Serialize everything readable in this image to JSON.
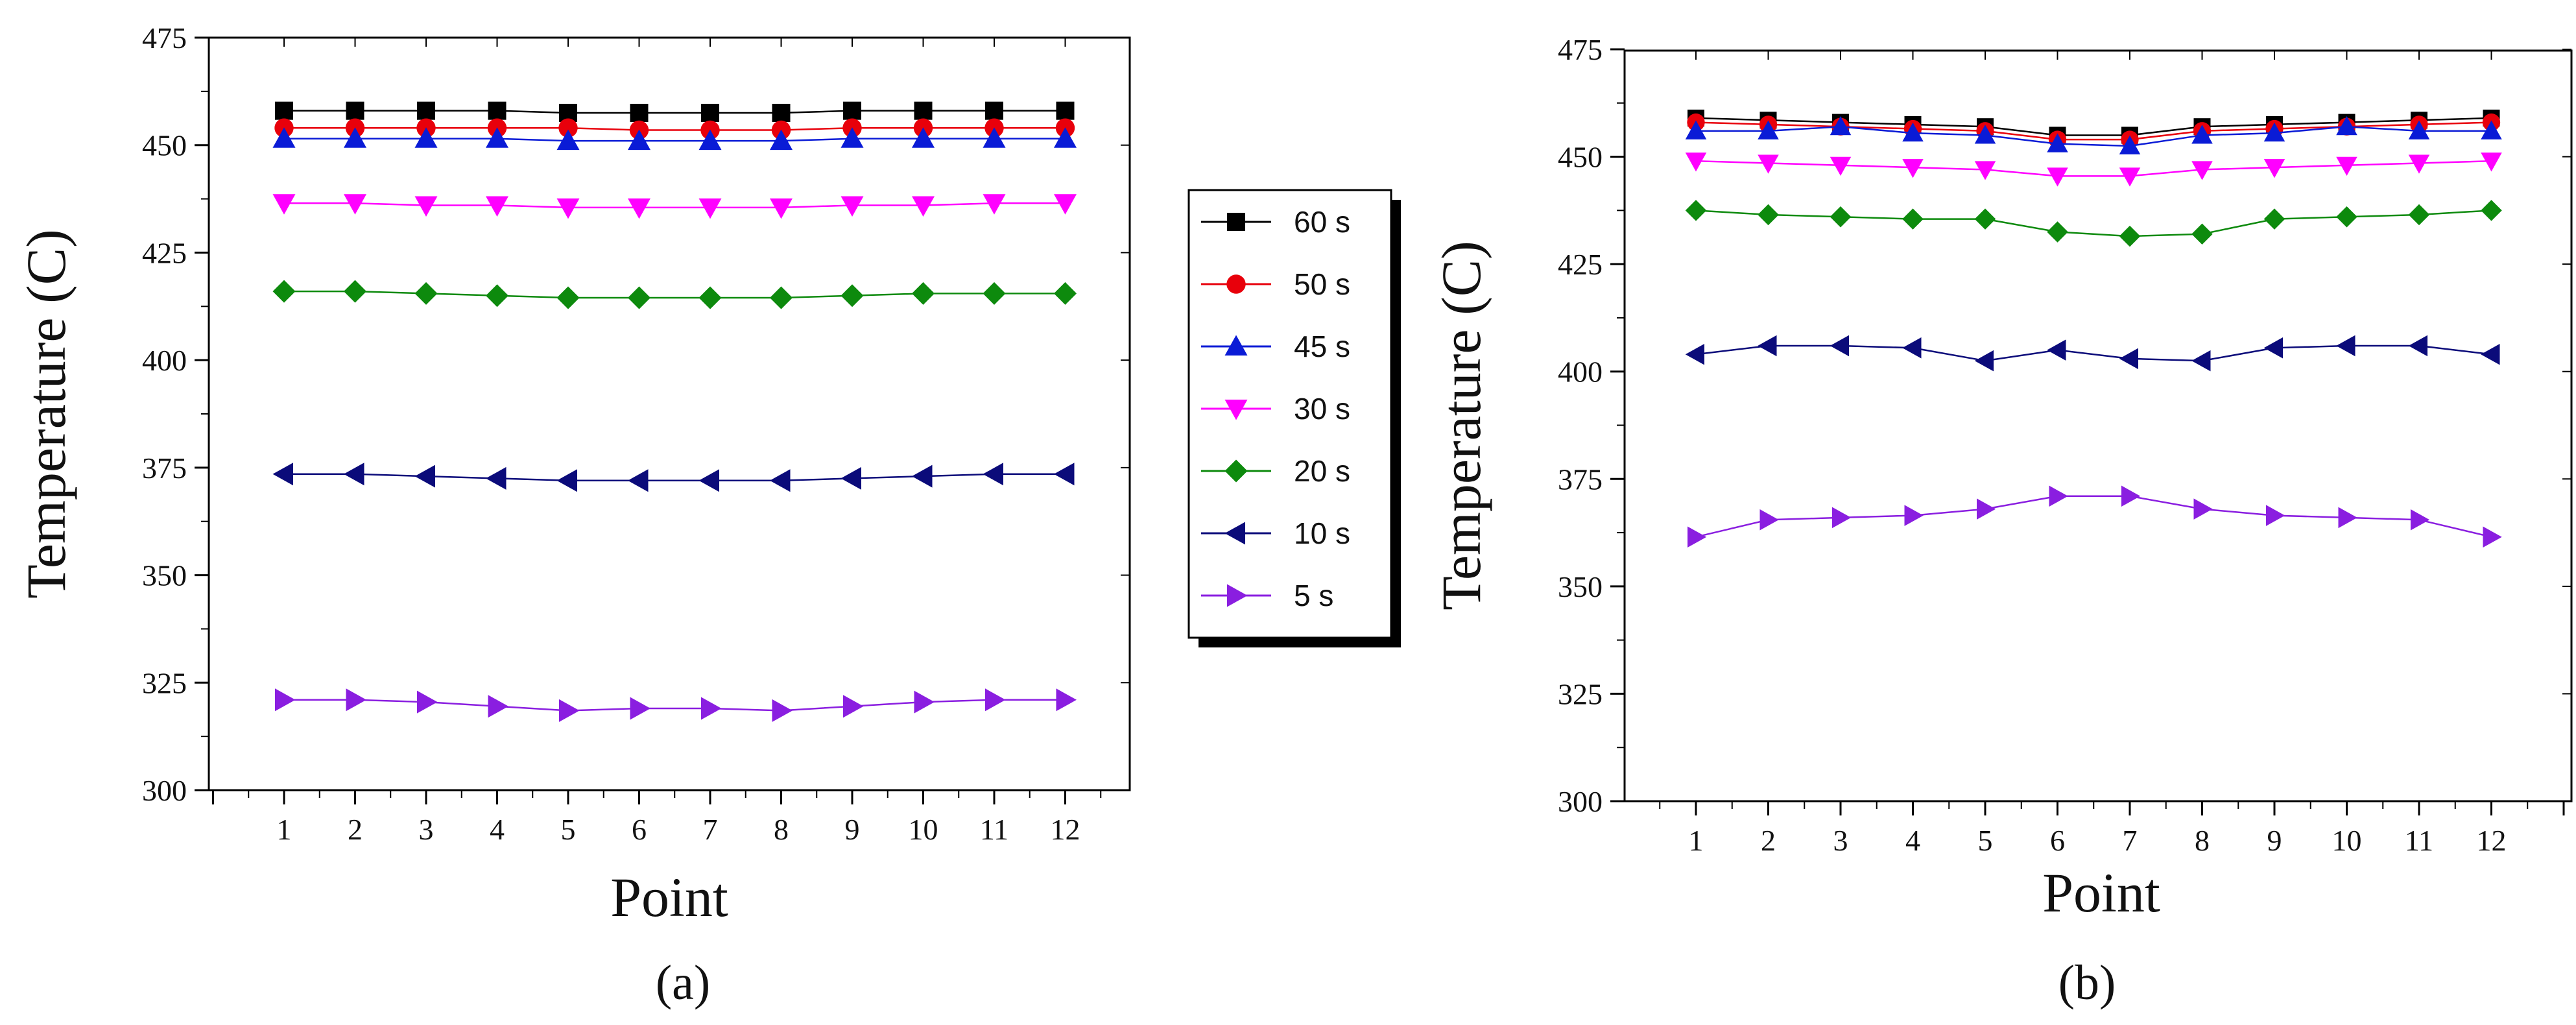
{
  "chart_data": [
    {
      "type": "line",
      "panel_label": "(a)",
      "xlabel": "Point",
      "ylabel": "Temperature (C)",
      "ylim": [
        300,
        475
      ],
      "yticks": [
        300,
        325,
        350,
        375,
        400,
        425,
        450,
        475
      ],
      "x": [
        1,
        2,
        3,
        4,
        5,
        6,
        7,
        8,
        9,
        10,
        11,
        12
      ],
      "grid": false,
      "series": [
        {
          "name": "60 s",
          "color": "#000000",
          "marker": "square",
          "values": [
            458,
            458,
            458,
            458,
            457.5,
            457.5,
            457.5,
            457.5,
            458,
            458,
            458,
            458
          ]
        },
        {
          "name": "50 s",
          "color": "#e8000b",
          "marker": "circle",
          "values": [
            454,
            454,
            454,
            454,
            454,
            453.5,
            453.5,
            453.5,
            454,
            454,
            454,
            454
          ]
        },
        {
          "name": "45 s",
          "color": "#0a1bd6",
          "marker": "triangle-up",
          "values": [
            451.5,
            451.5,
            451.5,
            451.5,
            451,
            451,
            451,
            451,
            451.5,
            451.5,
            451.5,
            451.5
          ]
        },
        {
          "name": "30 s",
          "color": "#ff00ff",
          "marker": "triangle-down",
          "values": [
            436.5,
            436.5,
            436,
            436,
            435.5,
            435.5,
            435.5,
            435.5,
            436,
            436,
            436.5,
            436.5
          ]
        },
        {
          "name": "20 s",
          "color": "#0d8a0d",
          "marker": "diamond",
          "values": [
            416,
            416,
            415.5,
            415,
            414.5,
            414.5,
            414.5,
            414.5,
            415,
            415.5,
            415.5,
            415.5
          ]
        },
        {
          "name": "10 s",
          "color": "#0b0b7a",
          "marker": "triangle-left",
          "values": [
            373.5,
            373.5,
            373,
            372.5,
            372,
            372,
            372,
            372,
            372.5,
            373,
            373.5,
            373.5
          ]
        },
        {
          "name": "5 s",
          "color": "#8a1ee0",
          "marker": "triangle-right",
          "values": [
            321,
            321,
            320.5,
            319.5,
            318.5,
            319,
            319,
            318.5,
            319.5,
            320.5,
            321,
            321
          ]
        }
      ]
    },
    {
      "type": "line",
      "panel_label": "(b)",
      "xlabel": "Point",
      "ylabel": "Temperature (C)",
      "ylim": [
        300,
        475
      ],
      "yticks": [
        300,
        325,
        350,
        375,
        400,
        425,
        450,
        475
      ],
      "x": [
        1,
        2,
        3,
        4,
        5,
        6,
        7,
        8,
        9,
        10,
        11,
        12
      ],
      "grid": false,
      "series": [
        {
          "name": "60 s",
          "color": "#000000",
          "marker": "square",
          "values": [
            459,
            458.5,
            458,
            457.5,
            457,
            455,
            455,
            457,
            457.5,
            458,
            458.5,
            459
          ]
        },
        {
          "name": "50 s",
          "color": "#e8000b",
          "marker": "circle",
          "values": [
            458,
            457.5,
            457,
            456.5,
            456,
            454,
            454,
            456,
            456.5,
            457,
            457.5,
            458
          ]
        },
        {
          "name": "45 s",
          "color": "#0a1bd6",
          "marker": "triangle-up",
          "values": [
            456,
            456,
            457,
            455.5,
            455,
            453,
            452.5,
            455,
            455.5,
            457,
            456,
            456
          ]
        },
        {
          "name": "30 s",
          "color": "#ff00ff",
          "marker": "triangle-down",
          "values": [
            449,
            448.5,
            448,
            447.5,
            447,
            445.5,
            445.5,
            447,
            447.5,
            448,
            448.5,
            449
          ]
        },
        {
          "name": "20 s",
          "color": "#0d8a0d",
          "marker": "diamond",
          "values": [
            437.5,
            436.5,
            436,
            435.5,
            435.5,
            432.5,
            431.5,
            432,
            435.5,
            436,
            436.5,
            437.5
          ]
        },
        {
          "name": "10 s",
          "color": "#0b0b7a",
          "marker": "triangle-left",
          "values": [
            404,
            406,
            406,
            405.5,
            402.5,
            405,
            403,
            402.5,
            405.5,
            406,
            406,
            404
          ]
        },
        {
          "name": "5 s",
          "color": "#8a1ee0",
          "marker": "triangle-right",
          "values": [
            361.5,
            365.5,
            366,
            366.5,
            368,
            371,
            371,
            368,
            366.5,
            366,
            365.5,
            361.5
          ]
        }
      ]
    }
  ],
  "legend": {
    "placement": "between-panels",
    "entries": [
      {
        "label": "60 s",
        "color": "#000000",
        "marker": "square"
      },
      {
        "label": "50 s",
        "color": "#e8000b",
        "marker": "circle"
      },
      {
        "label": "45 s",
        "color": "#0a1bd6",
        "marker": "triangle-up"
      },
      {
        "label": "30 s",
        "color": "#ff00ff",
        "marker": "triangle-down"
      },
      {
        "label": "20 s",
        "color": "#0d8a0d",
        "marker": "diamond"
      },
      {
        "label": "10 s",
        "color": "#0b0b7a",
        "marker": "triangle-left"
      },
      {
        "label": "5 s",
        "color": "#8a1ee0",
        "marker": "triangle-right"
      }
    ]
  }
}
